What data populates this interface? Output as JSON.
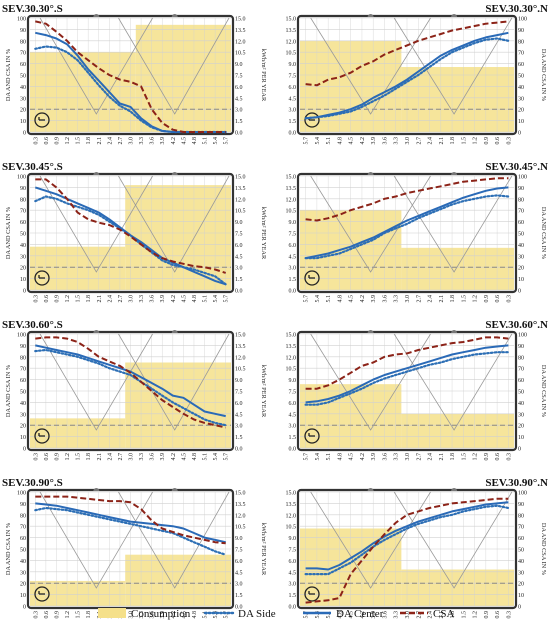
{
  "colors": {
    "consumption": "#f5e08a",
    "da_side": "#2d6fb5",
    "da_center": "#2a6ab7",
    "csa": "#8c2318",
    "frame": "#333333",
    "grid": "#d0d0d0",
    "dashed_ref": "#888888"
  },
  "legend": {
    "items": [
      {
        "label": "Consumption",
        "key": "consumption"
      },
      {
        "label": "DA Side",
        "key": "da_side"
      },
      {
        "label": "DA Center",
        "key": "da_center"
      },
      {
        "label": "CSA",
        "key": "csa"
      }
    ]
  },
  "axes": {
    "left_label": "DA AND CSA IN %",
    "right_label": "kWh/m² PER YEAR",
    "left_ticks": [
      "0",
      "10",
      "20",
      "30",
      "40",
      "50",
      "60",
      "70",
      "80",
      "90",
      "100"
    ],
    "right_ticks": [
      "0.0",
      "1.5",
      "3.0",
      "4.5",
      "6.0",
      "7.5",
      "9.0",
      "10.5",
      "12.0",
      "13.5",
      "15.0"
    ],
    "x_ticks_s": [
      "0.3",
      "0.6",
      "0.9",
      "1.2",
      "1.5",
      "1.8",
      "2.1",
      "2.4",
      "2.7",
      "3.0",
      "3.3",
      "3.6",
      "3.9",
      "4.2",
      "4.5",
      "4.8",
      "5.1",
      "5.4",
      "5.7"
    ],
    "x_ticks_n": [
      "5.7",
      "5.4",
      "5.1",
      "4.8",
      "4.5",
      "4.2",
      "3.9",
      "3.6",
      "3.3",
      "3.0",
      "2.7",
      "2.4",
      "2.1",
      "1.8",
      "1.5",
      "1.2",
      "0.9",
      "0.6",
      "0.3"
    ]
  },
  "chart_data": [
    {
      "type": "line",
      "title": "SEV.30.30°.S",
      "orientation": "S",
      "x": [
        "0.3",
        "0.6",
        "0.9",
        "1.2",
        "1.5",
        "1.8",
        "2.1",
        "2.4",
        "2.7",
        "3.0",
        "3.3",
        "3.6",
        "3.9",
        "4.2",
        "4.5",
        "4.8",
        "5.1",
        "5.4",
        "5.7"
      ],
      "consumption": [
        [
          0,
          10,
          70
        ],
        [
          10,
          19,
          94
        ]
      ],
      "series": [
        {
          "name": "DA Side",
          "values": [
            73,
            75,
            74,
            70,
            63,
            52,
            41,
            31,
            23,
            18,
            10,
            4,
            1,
            0,
            0,
            0,
            0,
            0,
            0
          ]
        },
        {
          "name": "DA Center",
          "values": [
            87,
            85,
            82,
            77,
            67,
            55,
            45,
            35,
            25,
            22,
            12,
            5,
            1,
            0,
            0,
            0,
            0,
            0,
            0
          ]
        },
        {
          "name": "CSA",
          "values": [
            97,
            95,
            88,
            80,
            70,
            63,
            56,
            50,
            46,
            44,
            40,
            20,
            8,
            2,
            0,
            0,
            0,
            0,
            0
          ]
        }
      ],
      "ylim": [
        0,
        100
      ],
      "y2lim": [
        0,
        15
      ]
    },
    {
      "type": "line",
      "title": "SEV.30.30°.N",
      "orientation": "N",
      "x": [
        "5.7",
        "5.4",
        "5.1",
        "4.8",
        "4.5",
        "4.2",
        "3.9",
        "3.6",
        "3.3",
        "3.0",
        "2.7",
        "2.4",
        "2.1",
        "1.8",
        "1.5",
        "1.2",
        "0.9",
        "0.6",
        "0.3"
      ],
      "consumption": [
        [
          0,
          9,
          80
        ],
        [
          9,
          19,
          57
        ]
      ],
      "series": [
        {
          "name": "DA Side",
          "values": [
            12,
            13,
            14,
            16,
            18,
            22,
            27,
            32,
            38,
            44,
            50,
            57,
            64,
            70,
            74,
            78,
            81,
            82,
            80
          ]
        },
        {
          "name": "DA Center",
          "values": [
            12,
            13,
            15,
            17,
            20,
            24,
            30,
            35,
            40,
            46,
            53,
            60,
            67,
            72,
            76,
            80,
            83,
            85,
            87
          ]
        },
        {
          "name": "CSA",
          "values": [
            42,
            41,
            46,
            48,
            52,
            58,
            62,
            68,
            72,
            76,
            80,
            83,
            86,
            89,
            91,
            93,
            95,
            96,
            97
          ]
        }
      ],
      "ylim": [
        0,
        100
      ],
      "y2lim": [
        0,
        15
      ]
    },
    {
      "type": "line",
      "title": "SEV.30.45°.S",
      "orientation": "S",
      "x": [
        "0.3",
        "0.6",
        "0.9",
        "1.2",
        "1.5",
        "1.8",
        "2.1",
        "2.4",
        "2.7",
        "3.0",
        "3.3",
        "3.6",
        "3.9",
        "4.2",
        "4.5",
        "4.8",
        "5.1",
        "5.4",
        "5.7"
      ],
      "consumption": [
        [
          0,
          9,
          38
        ],
        [
          9,
          19,
          92
        ]
      ],
      "series": [
        {
          "name": "DA Side",
          "values": [
            78,
            82,
            80,
            76,
            73,
            70,
            66,
            60,
            54,
            48,
            40,
            33,
            26,
            22,
            20,
            18,
            15,
            12,
            5
          ]
        },
        {
          "name": "DA Center",
          "values": [
            90,
            87,
            84,
            80,
            76,
            72,
            68,
            62,
            55,
            48,
            42,
            35,
            28,
            24,
            20,
            16,
            12,
            8,
            5
          ]
        },
        {
          "name": "CSA",
          "values": [
            97,
            97,
            90,
            80,
            68,
            62,
            59,
            57,
            53,
            47,
            40,
            33,
            28,
            25,
            23,
            21,
            20,
            18,
            15
          ]
        }
      ],
      "ylim": [
        0,
        100
      ],
      "y2lim": [
        0,
        15
      ]
    },
    {
      "type": "line",
      "title": "SEV.30.45°.N",
      "orientation": "N",
      "x": [
        "5.7",
        "5.4",
        "5.1",
        "4.8",
        "4.5",
        "4.2",
        "3.9",
        "3.6",
        "3.3",
        "3.0",
        "2.7",
        "2.4",
        "2.1",
        "1.8",
        "1.5",
        "1.2",
        "0.9",
        "0.6",
        "0.3"
      ],
      "consumption": [
        [
          0,
          9,
          70
        ],
        [
          9,
          19,
          37
        ]
      ],
      "series": [
        {
          "name": "DA Side",
          "values": [
            28,
            28,
            30,
            32,
            36,
            40,
            44,
            50,
            54,
            58,
            63,
            67,
            71,
            75,
            78,
            80,
            82,
            83,
            82
          ]
        },
        {
          "name": "DA Center",
          "values": [
            28,
            30,
            32,
            35,
            38,
            42,
            46,
            51,
            56,
            61,
            65,
            69,
            73,
            77,
            81,
            84,
            87,
            89,
            90
          ]
        },
        {
          "name": "CSA",
          "values": [
            62,
            61,
            63,
            66,
            70,
            73,
            76,
            80,
            82,
            85,
            87,
            89,
            91,
            93,
            95,
            96,
            97,
            98,
            98
          ]
        }
      ],
      "ylim": [
        0,
        100
      ],
      "y2lim": [
        0,
        15
      ]
    },
    {
      "type": "line",
      "title": "SEV.30.60°.S",
      "orientation": "S",
      "x": [
        "0.3",
        "0.6",
        "0.9",
        "1.2",
        "1.5",
        "1.8",
        "2.1",
        "2.4",
        "2.7",
        "3.0",
        "3.3",
        "3.6",
        "3.9",
        "4.2",
        "4.5",
        "4.8",
        "5.1",
        "5.4",
        "5.7"
      ],
      "consumption": [
        [
          0,
          9,
          26
        ],
        [
          9,
          19,
          75
        ]
      ],
      "series": [
        {
          "name": "DA Side",
          "values": [
            85,
            86,
            84,
            82,
            80,
            77,
            74,
            70,
            67,
            64,
            58,
            52,
            46,
            40,
            35,
            30,
            25,
            22,
            20
          ]
        },
        {
          "name": "DA Center",
          "values": [
            90,
            88,
            86,
            84,
            82,
            79,
            76,
            73,
            70,
            67,
            62,
            57,
            52,
            46,
            44,
            38,
            32,
            30,
            28
          ]
        },
        {
          "name": "CSA",
          "values": [
            96,
            97,
            97,
            96,
            93,
            87,
            80,
            76,
            72,
            66,
            58,
            50,
            42,
            36,
            30,
            25,
            22,
            20,
            18
          ]
        }
      ],
      "ylim": [
        0,
        100
      ],
      "y2lim": [
        0,
        15
      ]
    },
    {
      "type": "line",
      "title": "SEV.30.60°.N",
      "orientation": "N",
      "x": [
        "5.7",
        "5.4",
        "5.1",
        "4.8",
        "4.5",
        "4.2",
        "3.9",
        "3.6",
        "3.3",
        "3.0",
        "2.7",
        "2.4",
        "2.1",
        "1.8",
        "1.5",
        "1.2",
        "0.9",
        "0.6",
        "0.3"
      ],
      "consumption": [
        [
          0,
          9,
          56
        ],
        [
          9,
          19,
          30
        ]
      ],
      "series": [
        {
          "name": "DA Side",
          "values": [
            38,
            38,
            40,
            44,
            48,
            52,
            57,
            61,
            64,
            67,
            70,
            73,
            75,
            78,
            80,
            82,
            83,
            84,
            84
          ]
        },
        {
          "name": "DA Center",
          "values": [
            40,
            41,
            43,
            46,
            50,
            55,
            60,
            64,
            67,
            70,
            73,
            76,
            79,
            82,
            84,
            86,
            88,
            89,
            90
          ]
        },
        {
          "name": "CSA",
          "values": [
            52,
            52,
            55,
            60,
            66,
            72,
            75,
            80,
            82,
            83,
            86,
            88,
            90,
            92,
            93,
            95,
            97,
            97,
            96
          ]
        }
      ],
      "ylim": [
        0,
        100
      ],
      "y2lim": [
        0,
        15
      ]
    },
    {
      "type": "line",
      "title": "SEV.30.90°.S",
      "orientation": "S",
      "x": [
        "0.3",
        "0.6",
        "0.9",
        "1.2",
        "1.5",
        "1.8",
        "2.1",
        "2.4",
        "2.7",
        "3.0",
        "3.3",
        "3.6",
        "3.9",
        "4.2",
        "4.5",
        "4.8",
        "5.1",
        "5.4",
        "5.7"
      ],
      "consumption": [
        [
          0,
          9,
          22
        ],
        [
          9,
          19,
          45
        ]
      ],
      "series": [
        {
          "name": "DA Side",
          "values": [
            84,
            86,
            85,
            84,
            82,
            80,
            78,
            76,
            74,
            72,
            70,
            68,
            66,
            64,
            60,
            56,
            52,
            48,
            45
          ]
        },
        {
          "name": "DA Center",
          "values": [
            90,
            89,
            88,
            86,
            84,
            82,
            80,
            78,
            76,
            74,
            73,
            72,
            71,
            70,
            68,
            64,
            60,
            58,
            56
          ]
        },
        {
          "name": "CSA",
          "values": [
            96,
            96,
            96,
            96,
            95,
            94,
            93,
            92,
            92,
            91,
            85,
            75,
            68,
            65,
            62,
            60,
            58,
            56,
            55
          ]
        }
      ],
      "ylim": [
        0,
        100
      ],
      "y2lim": [
        0,
        15
      ]
    },
    {
      "type": "line",
      "title": "SEV.30.90°.N",
      "orientation": "N",
      "x": [
        "5.7",
        "5.4",
        "5.1",
        "4.8",
        "4.5",
        "4.2",
        "3.9",
        "3.6",
        "3.3",
        "3.0",
        "2.7",
        "2.4",
        "2.1",
        "1.8",
        "1.5",
        "1.2",
        "0.9",
        "0.6",
        "0.3"
      ],
      "consumption": [
        [
          0,
          9,
          68
        ],
        [
          9,
          19,
          32
        ]
      ],
      "series": [
        {
          "name": "DA Side",
          "values": [
            28,
            28,
            28,
            33,
            38,
            45,
            52,
            58,
            63,
            68,
            72,
            75,
            78,
            80,
            83,
            85,
            87,
            88,
            86
          ]
        },
        {
          "name": "DA Center",
          "values": [
            33,
            33,
            32,
            36,
            42,
            48,
            55,
            61,
            66,
            70,
            74,
            77,
            80,
            83,
            85,
            87,
            89,
            90,
            91
          ]
        },
        {
          "name": "CSA",
          "values": [
            3,
            4,
            5,
            7,
            28,
            40,
            52,
            63,
            73,
            80,
            83,
            86,
            88,
            90,
            91,
            92,
            93,
            94,
            94
          ]
        }
      ],
      "ylim": [
        0,
        100
      ],
      "y2lim": [
        0,
        15
      ]
    }
  ]
}
